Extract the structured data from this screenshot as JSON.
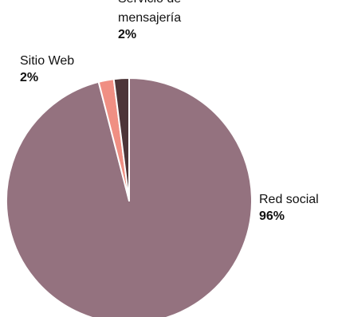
{
  "chart_data": {
    "type": "pie",
    "slices": [
      {
        "name": "Red social",
        "value": 96,
        "label_lines": [
          "Red social"
        ],
        "color": "#94727f"
      },
      {
        "name": "Sitio Web",
        "value": 2,
        "label_lines": [
          "Sitio Web"
        ],
        "color": "#f08f83"
      },
      {
        "name": "Servicio de mensajería",
        "value": 2,
        "label_lines": [
          "Servicio de",
          "mensajería"
        ],
        "color": "#4d3538"
      }
    ],
    "value_suffix": "%",
    "start_angle_deg": 0,
    "direction": "clockwise",
    "slice_border_color": "#ffffff"
  }
}
